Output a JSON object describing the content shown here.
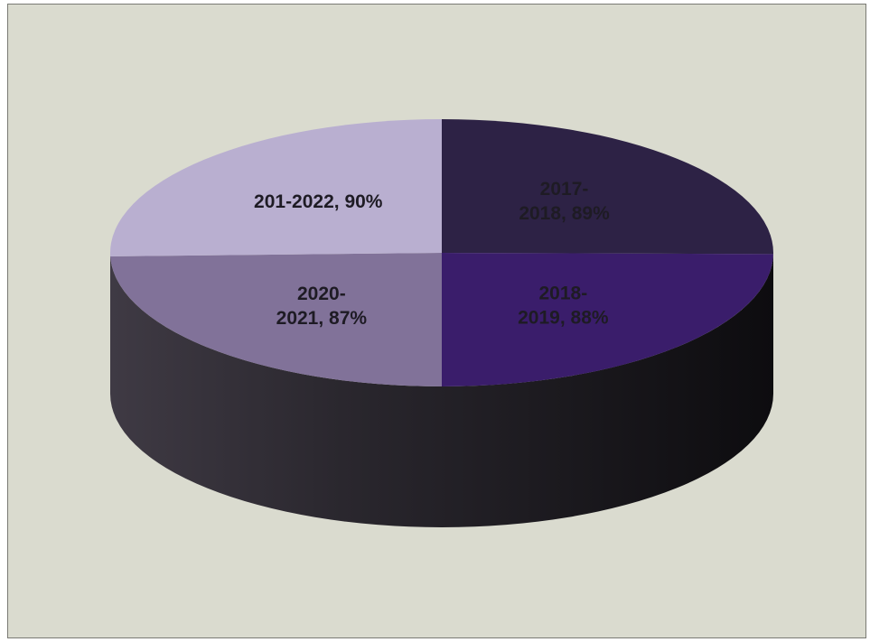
{
  "chart_data": {
    "type": "pie",
    "style": "3d",
    "labels": [
      "2017-2018",
      "2018-2019",
      "2020-2021",
      "201-2022"
    ],
    "values": [
      89,
      88,
      87,
      90
    ],
    "unit": "%",
    "data_labels": [
      {
        "lines": [
          "2017-",
          "2018, 89%"
        ]
      },
      {
        "lines": [
          "2018-",
          "2019, 88%"
        ]
      },
      {
        "lines": [
          "2020-",
          "2021, 87%"
        ]
      },
      {
        "lines": [
          "201-2022, 90%"
        ]
      }
    ],
    "colors": [
      "#2d2245",
      "#3a1d6b",
      "#817299",
      "#b9afd0"
    ],
    "side_color": "#27242b",
    "title": "",
    "legend": "none"
  }
}
